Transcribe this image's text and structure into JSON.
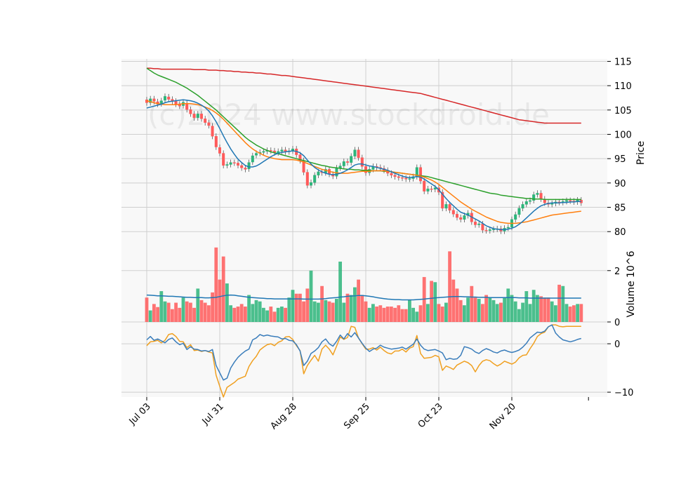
{
  "chart_data": {
    "type": "candlestick",
    "watermark": "(c)2024 www.stockdroid.de",
    "x_tick_labels": [
      "Jul 03",
      "Jul 31",
      "Aug 28",
      "Sep 25",
      "Oct 23",
      "Nov 20"
    ],
    "x_tick_days": [
      0,
      20,
      40,
      60,
      80,
      100
    ],
    "colors": {
      "up": "#2db57a",
      "down": "#ff5a5a",
      "ma_short": "#1f77b4",
      "ma_mid": "#ff7f0e",
      "ma_long": "#2ca02c",
      "ma_very_long": "#d62728",
      "osc_line_1": "#3a7dbb",
      "osc_line_2": "#f0a020",
      "panel_bg": "#f8f8f8",
      "grid": "#cfcfcf"
    },
    "price_panel": {
      "ylabel": "Price",
      "ylim": [
        77,
        115.5
      ],
      "yticks": [
        80,
        85,
        90,
        95,
        100,
        105,
        110,
        115
      ],
      "days": [
        0,
        1,
        2,
        3,
        4,
        5,
        6,
        7,
        8,
        9,
        10,
        11,
        12,
        13,
        14,
        15,
        16,
        17,
        18,
        19,
        20,
        21,
        22,
        23,
        24,
        25,
        26,
        27,
        28,
        29,
        30,
        31,
        32,
        33,
        34,
        35,
        36,
        37,
        38,
        39,
        40,
        41,
        42,
        43,
        44,
        45,
        46,
        47,
        48,
        49,
        50,
        51,
        52,
        53,
        54,
        55,
        56,
        57,
        58,
        59,
        60,
        61,
        62,
        63,
        64,
        65,
        66,
        67,
        68,
        69,
        70,
        71,
        72,
        73,
        74,
        75,
        76,
        77,
        78,
        79,
        80,
        81,
        82,
        83,
        84,
        85,
        86,
        87,
        88,
        89,
        90,
        91,
        92,
        93,
        94,
        95,
        96,
        97,
        98,
        99,
        100,
        101,
        102,
        103,
        104,
        105,
        106,
        107,
        108,
        109,
        110,
        111,
        112,
        113,
        114,
        115,
        116,
        117,
        118,
        119
      ],
      "close": [
        106.5,
        107.3,
        106.8,
        106.2,
        106.9,
        107.8,
        107.2,
        106.8,
        106.2,
        105.8,
        106.6,
        105.1,
        104.2,
        103.4,
        104.2,
        103.2,
        102.4,
        101.8,
        99.6,
        97.4,
        96.1,
        93.6,
        93.8,
        94.2,
        94.1,
        93.6,
        93.1,
        92.8,
        94.2,
        95.6,
        96.1,
        96.3,
        96.5,
        96.7,
        96.6,
        96.2,
        96.5,
        96.8,
        96.4,
        96.6,
        97.0,
        95.8,
        94.6,
        92.2,
        89.5,
        90.1,
        91.6,
        92.3,
        92.1,
        92.8,
        91.8,
        91.4,
        93.1,
        93.5,
        94.4,
        94.2,
        95.5,
        96.8,
        95.2,
        93.4,
        92.1,
        92.8,
        93.4,
        93.2,
        93.0,
        92.6,
        92.0,
        91.6,
        91.3,
        91.1,
        91.0,
        90.8,
        90.9,
        91.3,
        93.2,
        90.4,
        88.3,
        88.8,
        88.7,
        89.0,
        88.1,
        84.8,
        85.6,
        84.4,
        83.6,
        82.9,
        82.5,
        83.3,
        83.8,
        82.0,
        81.4,
        81.6,
        80.3,
        80.2,
        80.4,
        80.5,
        80.6,
        80.1,
        80.7,
        80.9,
        82.5,
        83.5,
        84.8,
        85.6,
        86.2,
        86.4,
        87.6,
        87.9,
        86.7,
        85.9,
        85.6,
        85.8,
        86.1,
        86.0,
        86.2,
        86.4,
        86.3,
        86.1,
        86.5,
        85.9
      ],
      "open_close_shift": [
        -0.6,
        0.8,
        -0.5,
        -0.5,
        0.6,
        0.8,
        -0.5,
        -0.4,
        -0.6,
        -0.4,
        0.7,
        -1.3,
        -0.9,
        -0.8,
        0.8,
        -1.0,
        -0.8,
        -0.6,
        -2.1,
        -2.2,
        -1.2,
        -2.5,
        0.2,
        0.4,
        -0.1,
        -0.5,
        -0.5,
        -0.3,
        1.3,
        1.3,
        0.4,
        0.2,
        0.2,
        0.2,
        -0.1,
        -0.4,
        0.3,
        0.3,
        -0.4,
        0.2,
        0.4,
        -1.2,
        -1.2,
        -2.4,
        -2.7,
        0.6,
        1.5,
        0.7,
        -0.2,
        0.7,
        -1.0,
        -0.4,
        1.7,
        0.4,
        0.9,
        -0.2,
        1.3,
        1.3,
        -1.6,
        -1.8,
        -1.3,
        0.7,
        0.6,
        -0.2,
        -0.2,
        -0.4,
        -0.6,
        -0.4,
        -0.3,
        -0.2,
        -0.1,
        -0.2,
        0.1,
        0.4,
        1.9,
        -2.8,
        -2.1,
        0.5,
        -0.1,
        0.3,
        -0.9,
        -3.3,
        0.8,
        -1.2,
        -0.8,
        -0.7,
        -0.4,
        0.8,
        0.5,
        -1.8,
        -0.6,
        0.2,
        -1.3,
        -0.1,
        0.2,
        0.1,
        0.1,
        -0.5,
        0.6,
        0.2,
        1.6,
        1.0,
        1.3,
        0.8,
        0.6,
        0.2,
        1.2,
        0.3,
        -1.2,
        -0.8,
        -0.3,
        0.2,
        0.3,
        -0.1,
        0.2,
        0.2,
        -0.1,
        -0.2,
        0.4,
        -0.6
      ],
      "ma_short": [
        105.4,
        105.6,
        105.8,
        106.0,
        106.2,
        106.5,
        106.7,
        106.8,
        106.9,
        107.0,
        107.1,
        107.0,
        106.9,
        106.7,
        106.4,
        106.0,
        105.5,
        104.8,
        103.8,
        102.6,
        101.2,
        99.7,
        98.3,
        97.0,
        95.9,
        94.9,
        94.2,
        93.6,
        93.3,
        93.3,
        93.5,
        93.9,
        94.4,
        94.9,
        95.4,
        95.8,
        96.1,
        96.3,
        96.4,
        96.5,
        96.6,
        96.5,
        96.2,
        95.6,
        94.7,
        93.9,
        93.2,
        92.7,
        92.3,
        92.0,
        91.8,
        91.7,
        91.8,
        92.0,
        92.3,
        92.7,
        93.2,
        93.7,
        93.9,
        93.9,
        93.7,
        93.5,
        93.4,
        93.2,
        93.0,
        92.8,
        92.6,
        92.3,
        92.0,
        91.7,
        91.4,
        91.2,
        91.1,
        91.2,
        91.3,
        91.2,
        90.8,
        90.3,
        89.8,
        89.3,
        88.6,
        87.7,
        86.8,
        86.0,
        85.3,
        84.6,
        84.0,
        83.7,
        83.4,
        83.0,
        82.6,
        82.2,
        81.7,
        81.2,
        80.9,
        80.6,
        80.5,
        80.4,
        80.4,
        80.5,
        80.7,
        81.0,
        81.5,
        82.1,
        82.8,
        83.5,
        84.2,
        84.8,
        85.3,
        85.6,
        85.8,
        85.9,
        85.9,
        85.9,
        86.0,
        86.0,
        86.1,
        86.1,
        86.2,
        86.2
      ],
      "ma_mid": [
        106.9,
        106.7,
        106.5,
        106.3,
        106.2,
        106.1,
        106.1,
        106.1,
        106.1,
        106.2,
        106.3,
        106.3,
        106.3,
        106.2,
        106.1,
        105.9,
        105.6,
        105.3,
        104.9,
        104.4,
        103.8,
        103.1,
        102.3,
        101.5,
        100.7,
        99.9,
        99.1,
        98.3,
        97.6,
        97.0,
        96.5,
        96.1,
        95.7,
        95.4,
        95.2,
        95.0,
        94.9,
        94.8,
        94.8,
        94.8,
        94.8,
        94.7,
        94.5,
        94.3,
        94.0,
        93.7,
        93.4,
        93.1,
        92.8,
        92.6,
        92.4,
        92.2,
        92.1,
        92.0,
        92.0,
        92.0,
        92.1,
        92.2,
        92.3,
        92.4,
        92.4,
        92.4,
        92.5,
        92.5,
        92.5,
        92.5,
        92.4,
        92.3,
        92.2,
        92.1,
        92.0,
        91.9,
        91.8,
        91.7,
        91.6,
        91.4,
        91.2,
        90.9,
        90.6,
        90.2,
        89.7,
        89.1,
        88.5,
        87.9,
        87.3,
        86.7,
        86.1,
        85.6,
        85.1,
        84.6,
        84.2,
        83.8,
        83.4,
        83.0,
        82.7,
        82.4,
        82.1,
        81.9,
        81.8,
        81.7,
        81.7,
        81.7,
        81.8,
        81.9,
        82.0,
        82.2,
        82.4,
        82.6,
        82.8,
        83.0,
        83.2,
        83.4,
        83.5,
        83.6,
        83.7,
        83.8,
        83.9,
        84.0,
        84.1,
        84.2
      ],
      "ma_long": [
        113.6,
        113.1,
        112.6,
        112.2,
        111.9,
        111.6,
        111.3,
        111.0,
        110.7,
        110.3,
        109.9,
        109.5,
        109.0,
        108.5,
        108.0,
        107.4,
        106.8,
        106.2,
        105.6,
        105.0,
        104.3,
        103.6,
        102.9,
        102.2,
        101.5,
        100.8,
        100.1,
        99.4,
        98.8,
        98.3,
        97.8,
        97.4,
        97.0,
        96.7,
        96.4,
        96.2,
        96.0,
        95.8,
        95.6,
        95.4,
        95.2,
        95.0,
        94.8,
        94.6,
        94.4,
        94.2,
        94.0,
        93.8,
        93.6,
        93.5,
        93.3,
        93.2,
        93.1,
        93.0,
        92.9,
        92.8,
        92.8,
        92.7,
        92.7,
        92.6,
        92.6,
        92.6,
        92.5,
        92.5,
        92.5,
        92.4,
        92.4,
        92.3,
        92.2,
        92.1,
        92.0,
        91.9,
        91.8,
        91.7,
        91.6,
        91.5,
        91.4,
        91.3,
        91.1,
        90.9,
        90.7,
        90.5,
        90.3,
        90.1,
        89.9,
        89.7,
        89.5,
        89.3,
        89.1,
        88.9,
        88.7,
        88.5,
        88.3,
        88.1,
        87.9,
        87.8,
        87.7,
        87.5,
        87.4,
        87.3,
        87.2,
        87.1,
        87.0,
        86.9,
        86.8,
        86.8,
        86.7,
        86.7,
        86.7,
        86.6,
        86.6,
        86.6,
        86.6,
        86.6,
        86.6,
        86.6,
        86.6,
        86.6,
        86.6,
        86.6
      ],
      "ma_very_long": [
        113.6,
        113.6,
        113.5,
        113.5,
        113.4,
        113.4,
        113.4,
        113.4,
        113.4,
        113.4,
        113.4,
        113.4,
        113.4,
        113.3,
        113.3,
        113.3,
        113.3,
        113.2,
        113.2,
        113.2,
        113.1,
        113.1,
        113.0,
        113.0,
        112.9,
        112.9,
        112.8,
        112.8,
        112.7,
        112.7,
        112.6,
        112.6,
        112.5,
        112.4,
        112.4,
        112.3,
        112.2,
        112.1,
        112.1,
        112.0,
        111.9,
        111.8,
        111.7,
        111.6,
        111.5,
        111.4,
        111.3,
        111.2,
        111.1,
        111.0,
        110.9,
        110.8,
        110.7,
        110.6,
        110.5,
        110.4,
        110.3,
        110.2,
        110.1,
        110.0,
        109.9,
        109.8,
        109.7,
        109.6,
        109.5,
        109.4,
        109.3,
        109.2,
        109.1,
        109.0,
        108.9,
        108.8,
        108.7,
        108.6,
        108.5,
        108.4,
        108.2,
        108.0,
        107.8,
        107.6,
        107.4,
        107.2,
        107.0,
        106.8,
        106.6,
        106.4,
        106.2,
        106.0,
        105.8,
        105.6,
        105.4,
        105.2,
        105.0,
        104.8,
        104.6,
        104.4,
        104.2,
        104.0,
        103.8,
        103.6,
        103.4,
        103.2,
        103.0,
        102.9,
        102.8,
        102.7,
        102.6,
        102.5,
        102.4,
        102.3,
        102.3,
        102.3,
        102.3,
        102.3,
        102.3,
        102.3,
        102.3,
        102.3,
        102.3,
        102.3
      ]
    },
    "volume_panel": {
      "ylabel": "Volume  10^6",
      "ylim": [
        0,
        2.95
      ],
      "yticks": [
        0,
        2
      ],
      "volume": [
        0.95,
        0.45,
        0.7,
        0.58,
        1.2,
        0.8,
        0.75,
        0.5,
        0.75,
        0.55,
        0.95,
        0.8,
        0.75,
        0.55,
        1.3,
        0.85,
        0.75,
        0.65,
        1.15,
        2.9,
        1.65,
        2.55,
        1.5,
        0.65,
        0.55,
        0.6,
        0.7,
        0.6,
        1.05,
        0.7,
        0.85,
        0.8,
        0.55,
        0.45,
        0.6,
        0.4,
        0.55,
        0.6,
        0.55,
        0.95,
        1.25,
        1.1,
        1.1,
        0.8,
        1.3,
        2.0,
        0.8,
        0.75,
        1.4,
        0.85,
        0.8,
        0.75,
        0.9,
        2.35,
        0.75,
        1.1,
        1.05,
        1.35,
        1.65,
        1.05,
        0.8,
        0.55,
        0.7,
        0.6,
        0.65,
        0.55,
        0.6,
        0.6,
        0.55,
        0.65,
        0.5,
        0.5,
        0.85,
        0.55,
        0.4,
        0.65,
        1.75,
        0.7,
        1.6,
        1.55,
        0.7,
        0.6,
        0.75,
        2.75,
        1.65,
        1.3,
        0.85,
        0.65,
        0.95,
        1.4,
        0.95,
        0.9,
        0.7,
        1.05,
        0.95,
        0.85,
        0.7,
        0.75,
        0.95,
        1.3,
        1.05,
        0.8,
        0.5,
        0.75,
        1.2,
        0.7,
        1.25,
        1.05,
        1.0,
        0.95,
        0.95,
        0.8,
        0.65,
        1.45,
        1.4,
        0.7,
        0.6,
        0.65,
        0.7,
        0.7
      ],
      "volume_ma": [
        1.05,
        1.04,
        1.03,
        1.02,
        1.02,
        1.01,
        1.0,
        1.0,
        0.99,
        0.98,
        0.97,
        0.96,
        0.96,
        0.95,
        0.95,
        0.95,
        0.94,
        0.94,
        0.95,
        0.96,
        0.99,
        1.02,
        1.04,
        1.05,
        1.04,
        1.02,
        1.0,
        0.98,
        0.96,
        0.95,
        0.94,
        0.93,
        0.92,
        0.91,
        0.91,
        0.9,
        0.9,
        0.9,
        0.9,
        0.9,
        0.9,
        0.9,
        0.9,
        0.89,
        0.89,
        0.89,
        0.89,
        0.89,
        0.9,
        0.91,
        0.93,
        0.94,
        0.95,
        0.97,
        0.98,
        1.0,
        1.01,
        1.02,
        1.03,
        1.03,
        1.02,
        1.0,
        0.98,
        0.95,
        0.93,
        0.91,
        0.89,
        0.88,
        0.87,
        0.87,
        0.86,
        0.86,
        0.86,
        0.86,
        0.87,
        0.88,
        0.89,
        0.91,
        0.92,
        0.94,
        0.95,
        0.96,
        0.97,
        0.98,
        0.99,
        0.99,
        0.99,
        0.98,
        0.98,
        0.97,
        0.97,
        0.96,
        0.96,
        0.96,
        0.95,
        0.95,
        0.95,
        0.95,
        0.95,
        0.95,
        0.95,
        0.95,
        0.94,
        0.94,
        0.94,
        0.93,
        0.93,
        0.93,
        0.93,
        0.93,
        0.93,
        0.93,
        0.93,
        0.93,
        0.93,
        0.93,
        0.93,
        0.93,
        0.93,
        0.93
      ]
    },
    "oscillator_panel": {
      "ylim": [
        -11,
        4.5
      ],
      "yticks": [
        -10,
        0
      ],
      "line_1": [
        0.8,
        1.5,
        0.7,
        1.0,
        0.6,
        0.2,
        0.9,
        1.2,
        0.4,
        -0.2,
        0.1,
        -1.2,
        -0.6,
        -1.1,
        -1.2,
        -1.5,
        -1.4,
        -1.6,
        -1.2,
        -4.5,
        -6.0,
        -7.5,
        -7.1,
        -5.0,
        -3.8,
        -2.8,
        -2.1,
        -1.5,
        -1.1,
        0.8,
        1.2,
        1.9,
        1.6,
        1.8,
        1.6,
        1.5,
        1.4,
        1.0,
        1.1,
        0.7,
        0.6,
        -0.2,
        -1.5,
        -4.5,
        -3.6,
        -2.0,
        -1.5,
        -0.8,
        0.4,
        1.0,
        0.0,
        -0.5,
        0.5,
        1.8,
        1.0,
        2.1,
        1.4,
        2.3,
        1.2,
        0.1,
        -0.9,
        -1.6,
        -1.1,
        -0.9,
        -0.3,
        -0.7,
        -0.9,
        -1.1,
        -1.0,
        -0.9,
        -0.7,
        -1.1,
        -0.6,
        -0.1,
        1.0,
        -0.3,
        -1.1,
        -1.4,
        -1.3,
        -1.2,
        -1.5,
        -1.9,
        -3.3,
        -3.0,
        -3.2,
        -3.1,
        -2.4,
        -0.6,
        -0.8,
        -1.1,
        -1.7,
        -2.0,
        -1.4,
        -1.0,
        -1.3,
        -1.7,
        -1.9,
        -1.5,
        -1.3,
        -1.6,
        -1.8,
        -1.6,
        -1.3,
        -0.7,
        0.1,
        1.2,
        1.8,
        2.4,
        2.3,
        2.6,
        3.5,
        3.9,
        2.2,
        1.4,
        0.8,
        0.6,
        0.4,
        0.6,
        0.9,
        1.1
      ],
      "line_2": [
        -0.4,
        0.4,
        0.5,
        0.7,
        0.2,
        0.7,
        1.9,
        2.1,
        1.5,
        0.5,
        0.4,
        -0.8,
        -0.2,
        -1.4,
        -1.3,
        -1.6,
        -1.4,
        -1.7,
        -1.9,
        -6.5,
        -8.8,
        -11.0,
        -9.0,
        -8.5,
        -8.0,
        -7.3,
        -7.0,
        -6.7,
        -4.7,
        -3.5,
        -2.6,
        -1.3,
        -0.7,
        -0.2,
        0.0,
        -0.4,
        0.3,
        0.6,
        1.4,
        1.5,
        0.9,
        -0.4,
        -1.4,
        -6.2,
        -4.5,
        -3.4,
        -2.4,
        -3.6,
        -1.1,
        -0.3,
        -1.1,
        -2.3,
        -0.5,
        1.4,
        0.9,
        1.3,
        3.6,
        3.4,
        1.2,
        0.0,
        -1.1,
        -1.1,
        -0.8,
        -1.3,
        -0.7,
        -1.4,
        -1.9,
        -2.1,
        -1.5,
        -1.5,
        -1.1,
        -1.7,
        -0.9,
        -0.6,
        1.7,
        -2.0,
        -3.0,
        -2.9,
        -2.8,
        -2.4,
        -2.7,
        -5.5,
        -4.6,
        -4.9,
        -5.3,
        -4.4,
        -4.0,
        -3.6,
        -3.9,
        -4.5,
        -5.8,
        -4.5,
        -3.6,
        -3.3,
        -3.5,
        -4.1,
        -4.6,
        -4.2,
        -3.6,
        -3.9,
        -4.2,
        -3.8,
        -2.9,
        -2.4,
        -2.3,
        -1.0,
        0.1,
        1.5,
        2.1,
        2.4,
        3.5,
        3.9,
        3.9,
        3.6,
        3.5,
        3.6,
        3.6,
        3.6,
        3.6,
        3.6
      ]
    }
  }
}
